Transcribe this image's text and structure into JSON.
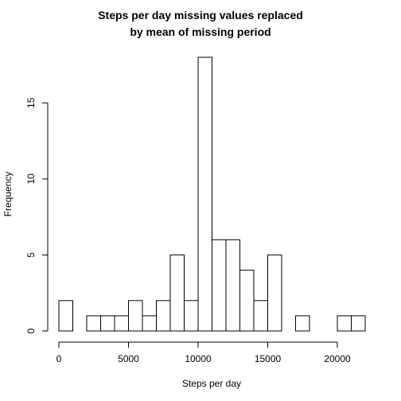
{
  "chart_data": {
    "type": "bar",
    "title_line1": "Steps per day missing values replaced",
    "title_line2": "by mean of missing period",
    "xlabel": "Steps per day",
    "ylabel": "Frequency",
    "bin_width": 1000,
    "bins": [
      {
        "start": 0,
        "end": 1000,
        "count": 2
      },
      {
        "start": 1000,
        "end": 2000,
        "count": 0
      },
      {
        "start": 2000,
        "end": 3000,
        "count": 1
      },
      {
        "start": 3000,
        "end": 4000,
        "count": 1
      },
      {
        "start": 4000,
        "end": 5000,
        "count": 1
      },
      {
        "start": 5000,
        "end": 6000,
        "count": 2
      },
      {
        "start": 6000,
        "end": 7000,
        "count": 1
      },
      {
        "start": 7000,
        "end": 8000,
        "count": 2
      },
      {
        "start": 8000,
        "end": 9000,
        "count": 5
      },
      {
        "start": 9000,
        "end": 10000,
        "count": 2
      },
      {
        "start": 10000,
        "end": 11000,
        "count": 18
      },
      {
        "start": 11000,
        "end": 12000,
        "count": 6
      },
      {
        "start": 12000,
        "end": 13000,
        "count": 6
      },
      {
        "start": 13000,
        "end": 14000,
        "count": 4
      },
      {
        "start": 14000,
        "end": 15000,
        "count": 2
      },
      {
        "start": 15000,
        "end": 16000,
        "count": 5
      },
      {
        "start": 16000,
        "end": 17000,
        "count": 0
      },
      {
        "start": 17000,
        "end": 18000,
        "count": 1
      },
      {
        "start": 18000,
        "end": 19000,
        "count": 0
      },
      {
        "start": 19000,
        "end": 20000,
        "count": 0
      },
      {
        "start": 20000,
        "end": 21000,
        "count": 1
      },
      {
        "start": 21000,
        "end": 22000,
        "count": 1
      }
    ],
    "xlim": [
      0,
      22000
    ],
    "ylim": [
      0,
      18
    ],
    "x_ticks": [
      0,
      5000,
      10000,
      15000,
      20000
    ],
    "y_ticks": [
      0,
      5,
      10,
      15
    ],
    "grid": false,
    "legend": "none"
  }
}
